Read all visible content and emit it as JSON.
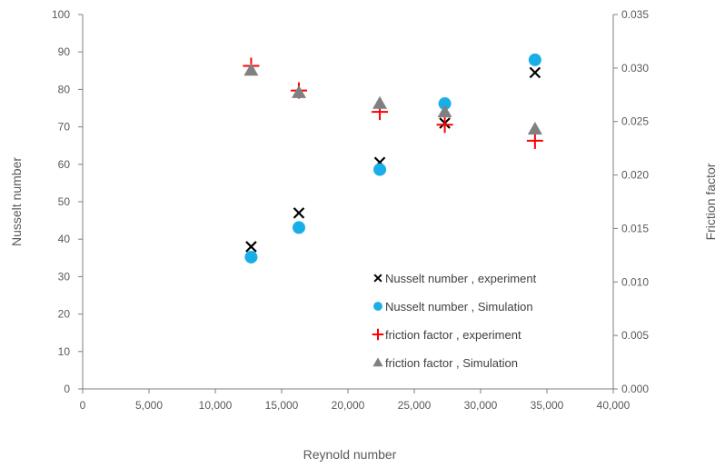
{
  "chart_data": {
    "type": "scatter",
    "xlabel": "Reynold number",
    "ylabel_left": "Nusselt number",
    "ylabel_right": "Friction factor",
    "xlim": [
      0,
      40000
    ],
    "ylim_left": [
      0,
      100
    ],
    "ylim_right": [
      0,
      0.035
    ],
    "x_ticks": [
      "0",
      "5,000",
      "10,000",
      "15,000",
      "20,000",
      "25,000",
      "30,000",
      "35,000",
      "40,000"
    ],
    "y_left_ticks": [
      "0",
      "10",
      "20",
      "30",
      "40",
      "50",
      "60",
      "70",
      "80",
      "90",
      "100"
    ],
    "y_right_ticks": [
      "0.000",
      "0.005",
      "0.010",
      "0.015",
      "0.020",
      "0.025",
      "0.030",
      "0.035"
    ],
    "grid": false,
    "legend_position": "bottom-right",
    "series": [
      {
        "name": "Nusselt number , experiment",
        "axis": "left",
        "marker": "x",
        "color": "#000000",
        "points": [
          [
            12700,
            38
          ],
          [
            16300,
            47
          ],
          [
            22400,
            60.5
          ],
          [
            27300,
            71
          ],
          [
            34100,
            84.5
          ]
        ]
      },
      {
        "name": "Nusselt number , Simulation",
        "axis": "left",
        "marker": "circle",
        "color": "#1AAEE8",
        "points": [
          [
            12700,
            35.2
          ],
          [
            16300,
            43.1
          ],
          [
            22400,
            58.6
          ],
          [
            27300,
            76.2
          ],
          [
            34100,
            87.9
          ]
        ]
      },
      {
        "name": "friction factor , experiment",
        "axis": "right",
        "marker": "plus",
        "color": "#FF0000",
        "points": [
          [
            12700,
            0.0302
          ],
          [
            16300,
            0.0279
          ],
          [
            22400,
            0.0259
          ],
          [
            27300,
            0.0247
          ],
          [
            34100,
            0.0232
          ]
        ]
      },
      {
        "name": "friction factor , Simulation",
        "axis": "right",
        "marker": "triangle",
        "color": "#808080",
        "points": [
          [
            12700,
            0.0298
          ],
          [
            16300,
            0.0277
          ],
          [
            22400,
            0.0267
          ],
          [
            27300,
            0.0259
          ],
          [
            34100,
            0.0243
          ]
        ]
      }
    ]
  }
}
